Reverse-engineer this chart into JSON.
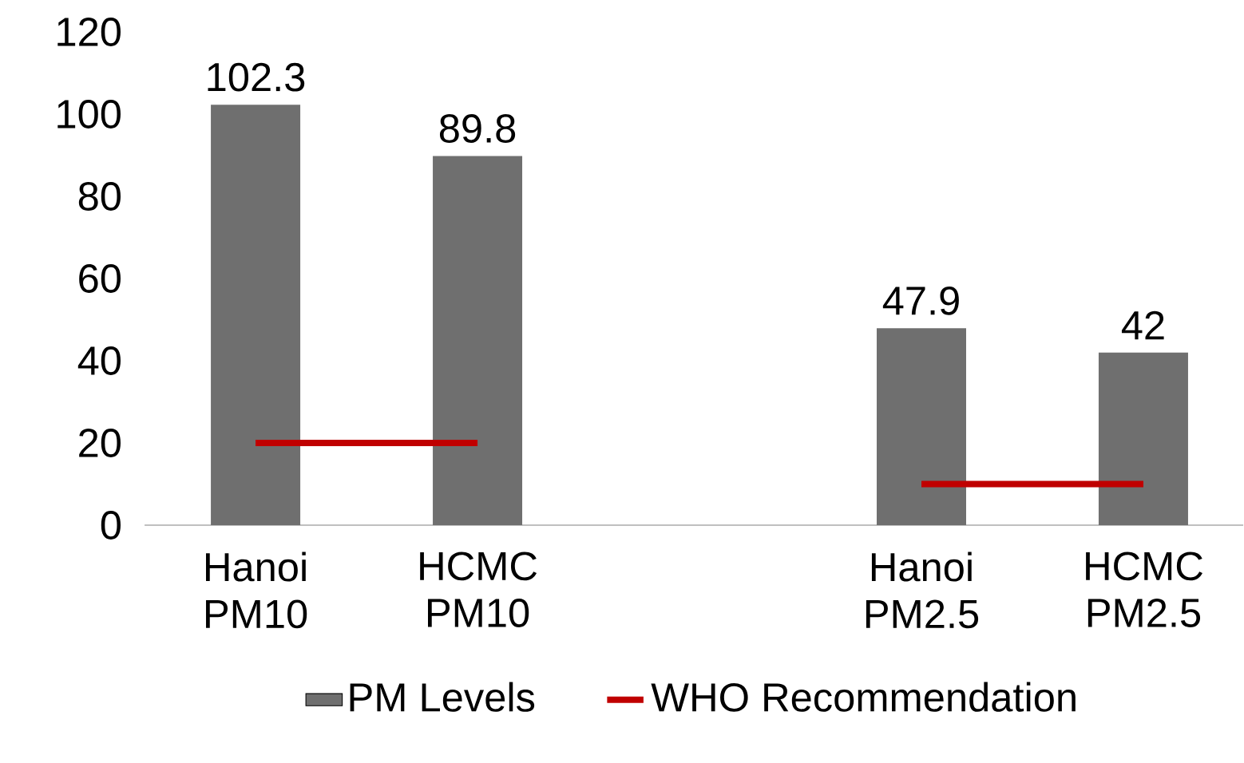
{
  "chart_data": {
    "type": "bar",
    "categories": [
      "Hanoi PM10",
      "HCMC PM10",
      null,
      "Hanoi PM2.5",
      "HCMC PM2.5"
    ],
    "series": [
      {
        "name": "PM Levels",
        "color": "#6f6f6f",
        "values": [
          102.3,
          89.8,
          null,
          47.9,
          42
        ],
        "value_labels": [
          "102.3",
          "89.8",
          null,
          "47.9",
          "42"
        ]
      },
      {
        "name": "WHO Recommendation",
        "type": "line",
        "color": "#c00000",
        "values": [
          20,
          20,
          null,
          10,
          10
        ]
      }
    ],
    "ylim": [
      0,
      120
    ],
    "yticks": [
      0,
      20,
      40,
      60,
      80,
      100,
      120
    ],
    "legend": "bottom"
  }
}
